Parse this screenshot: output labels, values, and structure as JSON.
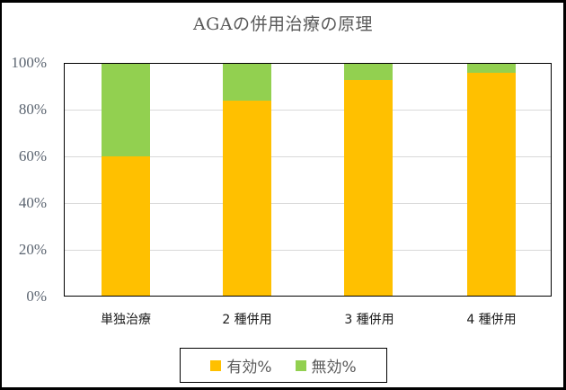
{
  "chart_data": {
    "type": "bar",
    "stacked": true,
    "percent_stacked": true,
    "title": "AGAの併用治療の原理",
    "xlabel": "",
    "ylabel": "",
    "categories": [
      "単独治療",
      "2 種併用",
      "3 種併用",
      "4 種併用"
    ],
    "series": [
      {
        "name": "有効%",
        "color": "#FFC000",
        "values": [
          60,
          84,
          93,
          96
        ]
      },
      {
        "name": "無効%",
        "color": "#92D050",
        "values": [
          40,
          16,
          7,
          4
        ]
      }
    ],
    "ylim": [
      0,
      100
    ],
    "yticks": [
      "0%",
      "20%",
      "40%",
      "60%",
      "80%",
      "100%"
    ],
    "grid": true,
    "legend_position": "bottom"
  },
  "title": "AGAの併用治療の原理",
  "yaxis": {
    "ticks": [
      "0%",
      "20%",
      "40%",
      "60%",
      "80%",
      "100%"
    ]
  },
  "xaxis": {
    "labels": [
      "単独治療",
      "2 種併用",
      "3 種併用",
      "4 種併用"
    ]
  },
  "legend": {
    "items": [
      {
        "label": "有効%",
        "color": "#FFC000"
      },
      {
        "label": "無効%",
        "color": "#92D050"
      }
    ]
  }
}
